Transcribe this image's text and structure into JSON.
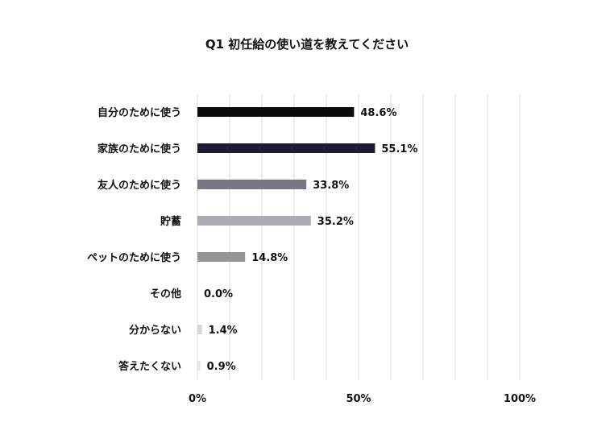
{
  "chart_data": {
    "type": "bar",
    "orientation": "horizontal",
    "title": "Q1 初任給の使い道を教えてください",
    "xlabel": "",
    "ylabel": "",
    "xlim": [
      0,
      100
    ],
    "x_ticks": [
      0,
      50,
      100
    ],
    "x_tick_labels": [
      "0%",
      "50%",
      "100%"
    ],
    "grid": true,
    "categories": [
      "自分のために使う",
      "家族のために使う",
      "友人のために使う",
      "貯蓄",
      "ペットのために使う",
      "その他",
      "分からない",
      "答えたくない"
    ],
    "values": [
      48.6,
      55.1,
      33.8,
      35.2,
      14.8,
      0.0,
      1.4,
      0.9
    ],
    "value_labels": [
      "48.6%",
      "55.1%",
      "33.8%",
      "35.2%",
      "14.8%",
      "0.0%",
      "1.4%",
      "0.9%"
    ],
    "bar_colors": [
      "#0b0b0b",
      "#1c1d33",
      "#777783",
      "#ababb3",
      "#969696",
      "#c8c8c8",
      "#d8d8d8",
      "#e6e6e6"
    ]
  }
}
